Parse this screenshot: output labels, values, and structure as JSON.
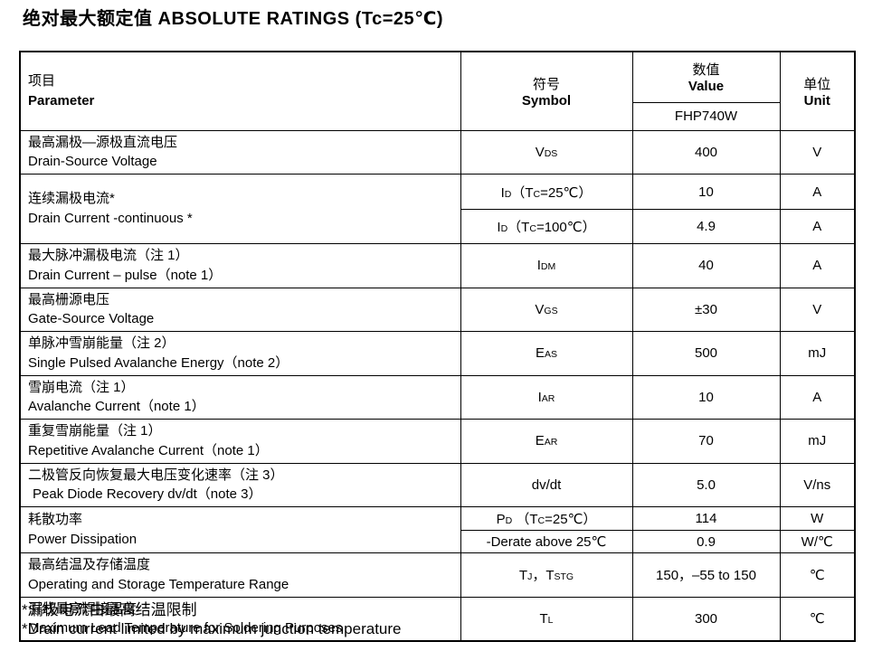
{
  "page_title": "绝对最大额定值 ABSOLUTE RATINGS (Tc=25℃)",
  "table": {
    "header": {
      "param_zh": "项目",
      "param_en": "Parameter",
      "symbol_zh": "符号",
      "symbol_en": "Symbol",
      "value_zh": "数值",
      "value_en": "Value",
      "device": "FHP740W",
      "unit_zh": "单位",
      "unit_en": "Unit"
    },
    "rows": {
      "vds": {
        "zh": "最高漏极—源极直流电压",
        "en": "Drain-Source Voltage",
        "sym": [
          "V",
          "DS"
        ],
        "value": "400",
        "unit": "V"
      },
      "id": {
        "zh": "连续漏极电流*",
        "en": "Drain Current -continuous *",
        "tc25": {
          "sym": [
            "I",
            "D",
            "（T",
            "C",
            "=25℃）"
          ],
          "value": "10",
          "unit": "A"
        },
        "tc100": {
          "sym": [
            "I",
            "D",
            "（T",
            "C",
            "=100℃）"
          ],
          "value": "4.9",
          "unit": "A"
        }
      },
      "idm": {
        "zh": "最大脉冲漏极电流（注 1）",
        "en": "Drain Current – pulse（note 1）",
        "sym": [
          "I",
          "DM"
        ],
        "value": "40",
        "unit": "A"
      },
      "vgs": {
        "zh": "最高栅源电压",
        "en": "Gate-Source Voltage",
        "sym": [
          "V",
          "GS"
        ],
        "value": "±30",
        "unit": "V"
      },
      "eas": {
        "zh": "单脉冲雪崩能量（注 2）",
        "en": "Single Pulsed Avalanche Energy（note 2）",
        "sym": [
          "E",
          "AS"
        ],
        "value": "500",
        "unit": "mJ"
      },
      "iar": {
        "zh": "雪崩电流（注 1）",
        "en": "Avalanche Current（note 1）",
        "sym": [
          "I",
          "AR"
        ],
        "value": "10",
        "unit": "A"
      },
      "ear": {
        "zh": "重复雪崩能量（注 1）",
        "en": "Repetitive Avalanche Current（note 1）",
        "sym": [
          "E",
          "AR"
        ],
        "value": "70",
        "unit": "mJ"
      },
      "dvdt": {
        "zh": "二极管反向恢复最大电压变化速率（注 3）",
        "en": "Peak Diode Recovery dv/dt（note 3）",
        "sym": [
          "dv/dt"
        ],
        "value": "5.0",
        "unit": "V/ns"
      },
      "pd": {
        "zh": "耗散功率",
        "en": "Power Dissipation",
        "tc25": {
          "sym": [
            "P",
            "D",
            " （T",
            "C",
            "=25℃）"
          ],
          "value": "114",
          "unit": "W"
        },
        "derate": {
          "sym": [
            "-Derate above 25℃"
          ],
          "value": "0.9",
          "unit": "W/℃"
        }
      },
      "tj": {
        "zh": "最高结温及存储温度",
        "en": "Operating and Storage Temperature Range",
        "sym": [
          "T",
          "J",
          "，T",
          "STG"
        ],
        "value": "150，–55 to 150",
        "unit": "℃"
      },
      "tl": {
        "zh": "引线最高焊接温度",
        "en": "Maximum Lead Temperature for Soldering Purposes",
        "sym": [
          "T",
          "L"
        ],
        "value": "300",
        "unit": "℃"
      }
    }
  },
  "footnotes": {
    "zh": "*漏极电流由最高结温限制",
    "en": "*Drain current limited by maximum junction temperature"
  }
}
